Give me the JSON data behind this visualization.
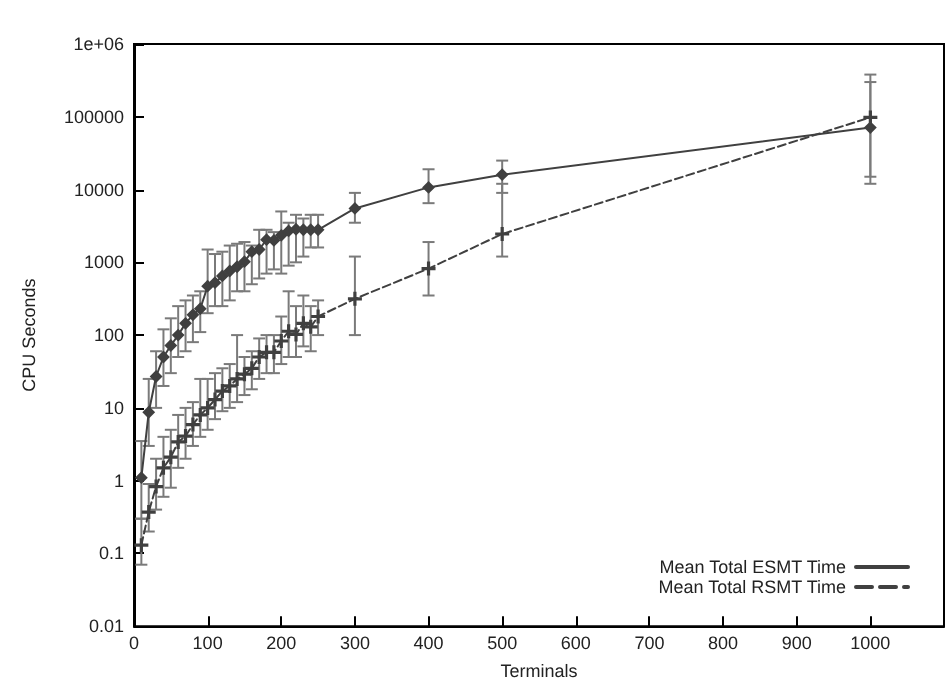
{
  "chart_data": {
    "type": "line",
    "xlabel": "Terminals",
    "ylabel": "CPU Seconds",
    "log": "y",
    "legend": "bottom right",
    "grid": false,
    "xlim": [
      0,
      1100
    ],
    "xticks": [
      0,
      100,
      200,
      300,
      400,
      500,
      600,
      700,
      800,
      900,
      1000
    ],
    "ylim": [
      0.01,
      1000000
    ],
    "yticks": [
      0.01,
      0.1,
      1,
      10,
      100,
      1000,
      10000,
      100000,
      {
        "value": 1000000,
        "label": "1e+06"
      }
    ],
    "series": [
      {
        "name": "Mean Total ESMT Time",
        "color": "#404040",
        "marker": "diamond",
        "line_style": "solid",
        "x": [
          10,
          20,
          30,
          40,
          50,
          60,
          70,
          80,
          90,
          100,
          110,
          120,
          130,
          140,
          150,
          160,
          170,
          180,
          190,
          200,
          210,
          220,
          230,
          240,
          250,
          300,
          400,
          500,
          1000
        ],
        "values": [
          1.1,
          8.7,
          27,
          50,
          72,
          100,
          145,
          190,
          230,
          470,
          525,
          650,
          760,
          870,
          1020,
          1400,
          1500,
          2050,
          2000,
          2350,
          2700,
          2850,
          2800,
          2800,
          2800,
          5500,
          10700,
          16000,
          71000
        ],
        "errors": [
          [
            0.3,
            3.5
          ],
          [
            3,
            25
          ],
          [
            10,
            60
          ],
          [
            20,
            120
          ],
          [
            30,
            170
          ],
          [
            50,
            250
          ],
          [
            60,
            300
          ],
          [
            80,
            350
          ],
          [
            110,
            400
          ],
          [
            200,
            1500
          ],
          [
            250,
            1300
          ],
          [
            250,
            1400
          ],
          [
            300,
            1700
          ],
          [
            400,
            1800
          ],
          [
            400,
            1900
          ],
          [
            500,
            1700
          ],
          [
            600,
            2800
          ],
          [
            700,
            2800
          ],
          [
            800,
            2600
          ],
          [
            700,
            5000
          ],
          [
            900,
            3500
          ],
          [
            1000,
            4500
          ],
          [
            1200,
            4000
          ],
          [
            1600,
            4500
          ],
          [
            1600,
            4500
          ],
          [
            3500,
            9000
          ],
          [
            6500,
            19000
          ],
          [
            9000,
            25000
          ],
          [
            12000,
            380000
          ]
        ]
      },
      {
        "name": "Mean Total RSMT Time",
        "color": "#404040",
        "marker": "cross",
        "line_style": "dashed",
        "x": [
          10,
          20,
          30,
          40,
          50,
          60,
          70,
          80,
          90,
          100,
          110,
          120,
          130,
          140,
          150,
          160,
          170,
          180,
          190,
          200,
          210,
          220,
          230,
          240,
          250,
          300,
          400,
          500,
          1000
        ],
        "values": [
          0.13,
          0.37,
          0.83,
          1.5,
          2.1,
          3.4,
          4.1,
          5.9,
          8,
          10,
          13,
          17,
          20,
          25,
          29,
          35,
          50,
          58,
          58,
          83,
          113,
          102,
          145,
          130,
          180,
          315,
          820,
          2450,
          98000
        ],
        "errors": [
          [
            0.07,
            0.3
          ],
          [
            0.2,
            0.9
          ],
          [
            0.4,
            2
          ],
          [
            0.6,
            4
          ],
          [
            0.8,
            5
          ],
          [
            1.5,
            8
          ],
          [
            2,
            10
          ],
          [
            3,
            12
          ],
          [
            4,
            25
          ],
          [
            5,
            25
          ],
          [
            7,
            30
          ],
          [
            9,
            35
          ],
          [
            10,
            40
          ],
          [
            12,
            100
          ],
          [
            15,
            50
          ],
          [
            18,
            60
          ],
          [
            25,
            90
          ],
          [
            30,
            100
          ],
          [
            30,
            100
          ],
          [
            40,
            180
          ],
          [
            50,
            400
          ],
          [
            50,
            250
          ],
          [
            70,
            350
          ],
          [
            60,
            250
          ],
          [
            100,
            300
          ],
          [
            100,
            1200
          ],
          [
            350,
            1900
          ],
          [
            1200,
            12000
          ],
          [
            15000,
            300000
          ]
        ]
      }
    ]
  }
}
